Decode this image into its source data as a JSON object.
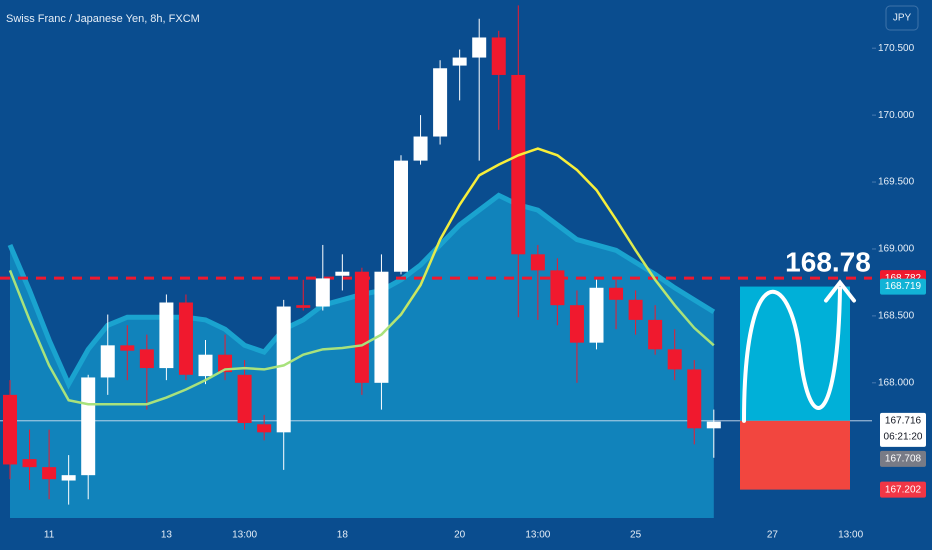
{
  "chart_data": {
    "type": "candlestick",
    "title": "Swiss Franc / Japanese Yen, 8h, FXCM",
    "currency_button": "JPY",
    "categories": [
      null,
      null,
      "11",
      null,
      null,
      null,
      null,
      null,
      "13",
      null,
      null,
      null,
      "13:00",
      null,
      null,
      null,
      null,
      "18",
      null,
      null,
      null,
      null,
      null,
      "20",
      null,
      null,
      null,
      "13:00",
      null,
      null,
      null,
      null,
      "25",
      null,
      null,
      null,
      null,
      null,
      null,
      "27",
      null,
      null,
      null,
      "13:00",
      null
    ],
    "open": [
      167.91,
      167.43,
      167.37,
      167.27,
      167.31,
      168.04,
      168.28,
      168.25,
      168.11,
      168.6,
      168.05,
      168.21,
      168.06,
      167.69,
      167.63,
      168.58,
      168.57,
      168.8,
      168.83,
      168.0,
      168.83,
      169.66,
      169.84,
      170.37,
      170.43,
      170.58,
      170.3,
      168.96,
      168.84,
      168.58,
      168.3,
      168.71,
      168.62,
      168.47,
      168.25,
      168.1,
      167.66,
      null,
      null,
      null,
      null,
      null,
      null,
      null,
      null
    ],
    "high": [
      168.02,
      167.65,
      167.65,
      167.46,
      168.06,
      168.51,
      168.43,
      168.36,
      168.66,
      168.66,
      168.32,
      168.36,
      168.17,
      167.76,
      168.62,
      168.77,
      169.03,
      168.96,
      168.86,
      168.96,
      169.7,
      170.0,
      170.41,
      170.49,
      170.72,
      170.63,
      170.82,
      169.03,
      168.93,
      168.69,
      168.77,
      168.77,
      168.69,
      168.58,
      168.4,
      168.17,
      167.8,
      null,
      null,
      null,
      null,
      null,
      null,
      null,
      null
    ],
    "low": [
      167.28,
      167.2,
      167.13,
      167.09,
      167.13,
      167.91,
      168.02,
      167.8,
      168.02,
      168.02,
      167.99,
      168.02,
      167.65,
      167.57,
      167.35,
      168.54,
      168.54,
      168.69,
      167.91,
      167.8,
      168.81,
      169.63,
      169.78,
      170.11,
      169.66,
      169.89,
      168.49,
      168.47,
      168.43,
      168.0,
      168.25,
      168.4,
      168.36,
      168.21,
      168.02,
      167.54,
      167.44,
      null,
      null,
      null,
      null,
      null,
      null,
      null,
      null
    ],
    "close": [
      167.39,
      167.37,
      167.28,
      167.31,
      168.04,
      168.28,
      168.24,
      168.11,
      168.6,
      168.06,
      168.21,
      168.08,
      167.7,
      167.63,
      168.57,
      168.56,
      168.78,
      168.83,
      168.0,
      168.83,
      169.66,
      169.84,
      170.35,
      170.43,
      170.58,
      170.3,
      168.96,
      168.84,
      168.58,
      168.3,
      168.71,
      168.62,
      168.47,
      168.25,
      168.1,
      167.66,
      167.71,
      null,
      null,
      null,
      null,
      null,
      null,
      null,
      null
    ],
    "ma": [
      168.84,
      168.47,
      168.13,
      167.87,
      167.84,
      167.84,
      167.84,
      167.84,
      167.89,
      167.95,
      168.02,
      168.1,
      168.11,
      168.1,
      168.13,
      168.21,
      168.25,
      168.26,
      168.28,
      168.36,
      168.51,
      168.73,
      169.07,
      169.33,
      169.55,
      169.63,
      169.7,
      169.75,
      169.7,
      169.59,
      169.44,
      169.22,
      168.99,
      168.77,
      168.58,
      168.41,
      168.28,
      null,
      null,
      null,
      null,
      null,
      null,
      null,
      null
    ],
    "band": [
      169.03,
      168.69,
      168.32,
      167.99,
      168.25,
      168.43,
      168.49,
      168.49,
      168.49,
      168.49,
      168.47,
      168.4,
      168.28,
      168.23,
      168.4,
      168.47,
      168.58,
      168.62,
      168.66,
      168.69,
      168.77,
      168.88,
      169.03,
      169.18,
      169.29,
      169.4,
      169.33,
      169.29,
      169.18,
      169.07,
      169.03,
      168.99,
      168.9,
      168.81,
      168.71,
      168.62,
      168.53,
      null,
      null,
      null,
      null,
      null,
      null,
      null,
      null
    ],
    "up_color": "#ffffff",
    "down_color": "#f0192e",
    "ma_colors": [
      "#a8e27c",
      "#f7ee3a"
    ],
    "band_color": "#1183bb",
    "band_edge_color": "#1aa3cf",
    "ylim": [
      166.99,
      170.86
    ],
    "yticks": [
      {
        "value": 168.0,
        "label": "168.000"
      },
      {
        "value": 168.5,
        "label": "168.500"
      },
      {
        "value": 169.0,
        "label": "169.000"
      },
      {
        "value": 169.5,
        "label": "169.500"
      },
      {
        "value": 170.0,
        "label": "170.000"
      },
      {
        "value": 170.5,
        "label": "170.500"
      }
    ],
    "price_tags": [
      {
        "value": 168.782,
        "label": "168.782",
        "color": "#f0192e"
      },
      {
        "value": 168.719,
        "label": "168.719",
        "color": "#12b3d6"
      },
      {
        "value": 167.716,
        "label": "167.716",
        "color": "#ffffff"
      },
      {
        "value": 167.708,
        "label": "167.708",
        "color": "#787b86"
      },
      {
        "value": 167.202,
        "label": "167.202",
        "color": "#f23645"
      }
    ],
    "countdown": "06:21:20",
    "annotation": "168.78",
    "target_color": "#00b0d8",
    "stop_color": "#f2463f"
  }
}
